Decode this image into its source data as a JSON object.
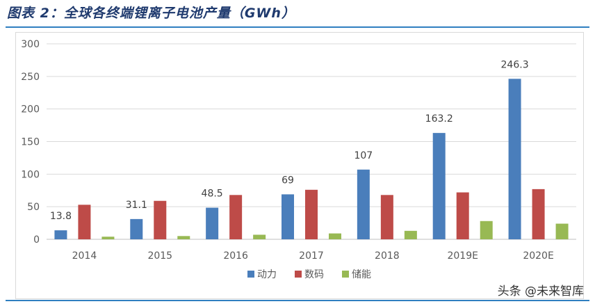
{
  "figure": {
    "title": "图表 2：全球各终端锂离子电池产量（GWh）"
  },
  "watermark": "头条 @未来智库",
  "colors": {
    "series_1": "#4a7ebb",
    "series_2": "#be4b48",
    "series_3": "#98b954",
    "axis_text": "#595959",
    "gridline": "#d9d9d9",
    "rule": "#2f7fc0"
  },
  "chart_data": {
    "type": "bar",
    "title": "",
    "xlabel": "",
    "ylabel": "",
    "categories": [
      "2014",
      "2015",
      "2016",
      "2017",
      "2018",
      "2019E",
      "2020E"
    ],
    "ylim": [
      0,
      300
    ],
    "yticks": [
      0,
      50,
      100,
      150,
      200,
      250,
      300
    ],
    "grid": true,
    "legend_position": "bottom",
    "series": [
      {
        "name": "动力",
        "values": [
          13.8,
          31.1,
          48.5,
          69,
          107,
          163.2,
          246.3
        ],
        "labels": [
          "13.8",
          "31.1",
          "48.5",
          "69",
          "107",
          "163.2",
          "246.3"
        ]
      },
      {
        "name": "数码",
        "values": [
          53,
          59,
          68,
          76,
          68,
          72,
          77
        ]
      },
      {
        "name": "储能",
        "values": [
          4,
          5,
          7,
          9,
          13,
          28,
          24
        ]
      }
    ]
  }
}
